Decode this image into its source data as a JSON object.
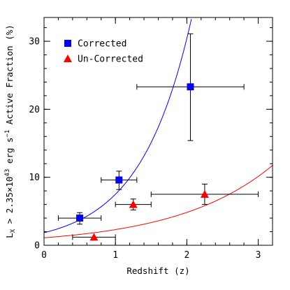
{
  "chart_data": {
    "type": "scatter",
    "xlabel": "Redshift (z)",
    "ylabel": "L_X > 2.35×10^43 erg s^-1 Active Fraction (%)",
    "ylabel_parts": {
      "base": "L",
      "sub": "X",
      "mid": " > 2.35×10",
      "sup1": "43",
      "mid2": " erg s",
      "sup2": "−1",
      "tail": " Active Fraction (%)"
    },
    "xlim": [
      0,
      3.2
    ],
    "ylim": [
      0,
      33.5
    ],
    "x_ticks": [
      0,
      1,
      2,
      3
    ],
    "x_tick_labels": [
      "0",
      "1",
      "2",
      "3"
    ],
    "y_ticks": [
      0,
      10,
      20,
      30
    ],
    "y_tick_labels": [
      "0",
      "10",
      "20",
      "30"
    ],
    "x_minor_step": 0.2,
    "y_minor_step": 2,
    "legend_position": "top-left",
    "series": [
      {
        "name": "Corrected",
        "marker": "square",
        "color": "#0000ff",
        "points": [
          {
            "x": 0.5,
            "y": 4.0,
            "xerr": [
              0.3,
              0.3
            ],
            "yerr": [
              0.9,
              0.8
            ]
          },
          {
            "x": 1.05,
            "y": 9.6,
            "xerr": [
              0.25,
              0.25
            ],
            "yerr": [
              1.4,
              1.3
            ]
          },
          {
            "x": 2.05,
            "y": 23.3,
            "xerr": [
              0.75,
              0.75
            ],
            "yerr": [
              7.9,
              7.8
            ]
          }
        ],
        "fit": {
          "type": "exponential",
          "a": 1.85,
          "b": 1.4
        }
      },
      {
        "name": "Un-Corrected",
        "marker": "triangle",
        "color": "#ff0000",
        "points": [
          {
            "x": 0.7,
            "y": 1.2,
            "xerr": [
              0.3,
              0.3
            ],
            "yerr": [
              0,
              0
            ]
          },
          {
            "x": 1.25,
            "y": 6.0,
            "xerr": [
              0.25,
              0.25
            ],
            "yerr": [
              0.8,
              0.8
            ]
          },
          {
            "x": 2.25,
            "y": 7.5,
            "xerr": [
              0.75,
              0.75
            ],
            "yerr": [
              1.5,
              1.5
            ]
          }
        ],
        "fit": {
          "type": "exponential",
          "a": 1.1,
          "b": 0.74
        }
      }
    ]
  }
}
